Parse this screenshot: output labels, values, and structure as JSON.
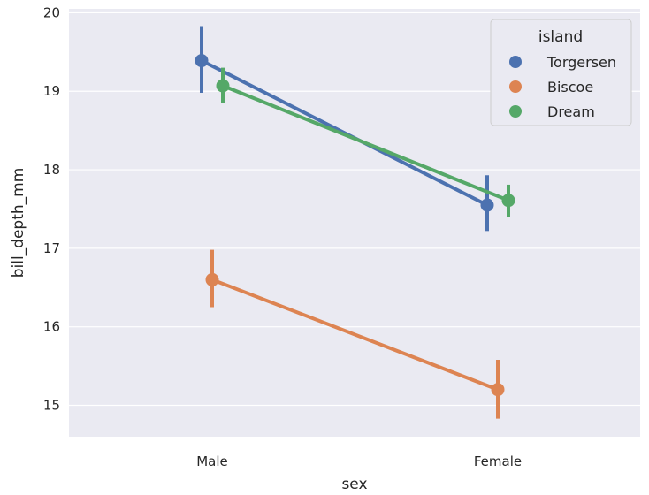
{
  "chart_data": {
    "type": "line",
    "title": "",
    "xlabel": "sex",
    "ylabel": "bill_depth_mm",
    "categories": [
      "Male",
      "Female"
    ],
    "ylim": [
      14.6,
      20.05
    ],
    "yticks": [
      15,
      16,
      17,
      18,
      19,
      20
    ],
    "grid": true,
    "legend": {
      "title": "island",
      "placement": "top-right"
    },
    "series": [
      {
        "name": "Torgersen",
        "color": "#4c72b0",
        "values": [
          19.39,
          17.55
        ],
        "ci": [
          [
            18.98,
            19.83
          ],
          [
            17.22,
            17.93
          ]
        ]
      },
      {
        "name": "Biscoe",
        "color": "#dd8452",
        "values": [
          16.6,
          15.2
        ],
        "ci": [
          [
            16.25,
            16.98
          ],
          [
            14.83,
            15.58
          ]
        ]
      },
      {
        "name": "Dream",
        "color": "#55a868",
        "values": [
          19.07,
          17.61
        ],
        "ci": [
          [
            18.85,
            19.3
          ],
          [
            17.4,
            17.81
          ]
        ]
      }
    ]
  }
}
